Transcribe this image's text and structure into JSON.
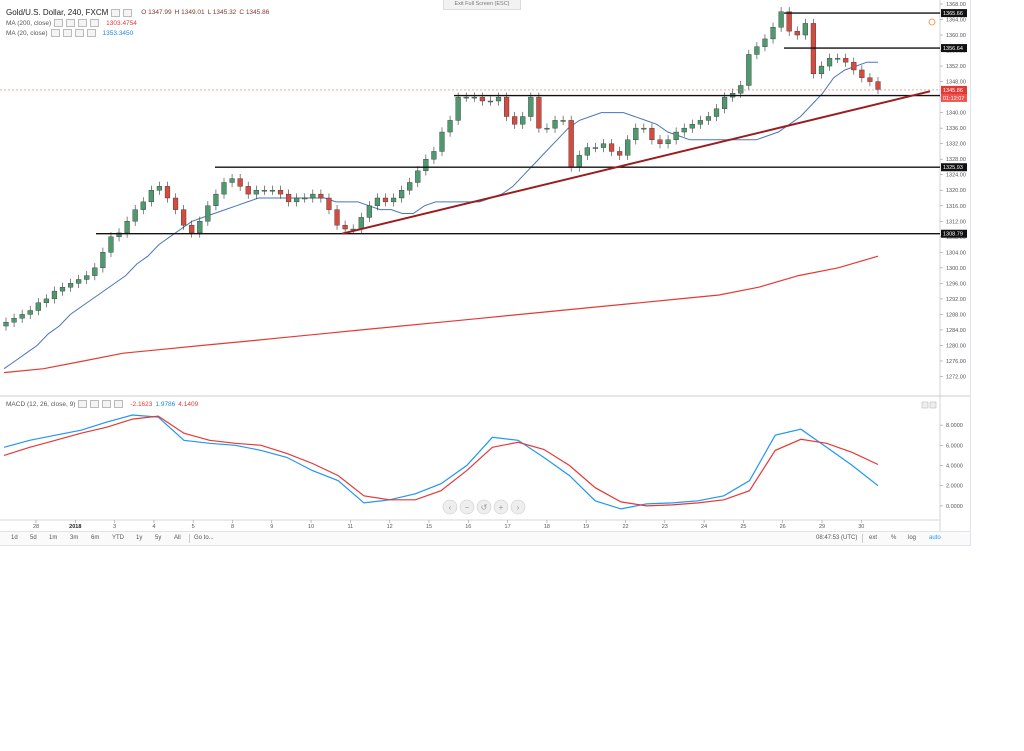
{
  "legend": {
    "symbol": "Gold/U.S. Dollar, 240, FXCM",
    "open": "O 1347.99",
    "high": "H 1349.01",
    "low": "L 1345.32",
    "close": "C 1345.86",
    "ma200_label": "MA (200, close)",
    "ma200_value": "1303.4754",
    "ma20_label": "MA (20, close)",
    "ma20_value": "1353.3450",
    "macd_label": "MACD (12, 26, close, 9)",
    "macd_v1": "-2.1623",
    "macd_v2": "1.9786",
    "macd_v3": "4.1409"
  },
  "exit_fullscreen": "Exit Full Screen (ESC)",
  "toolbar": {
    "ranges": [
      "1d",
      "5d",
      "1m",
      "3m",
      "6m",
      "YTD",
      "1y",
      "5y",
      "All"
    ],
    "goto": "Go to...",
    "clock": "08:47:53 (UTC)",
    "ext": "ext",
    "pct": "%",
    "log": "log",
    "auto": "auto"
  },
  "colors": {
    "up": "#4e9a6f",
    "down": "#d44b40",
    "ma20": "#4a76b8",
    "ma200": "#e53935",
    "trend": "#9b1c1c",
    "macd": "#2196f3",
    "signal": "#e53935"
  },
  "chart_data": [
    {
      "type": "candlestick",
      "title": "Gold/U.S. Dollar, 240, FXCM",
      "ylim": [
        1268,
        1368
      ],
      "y_ticks": [
        1272,
        1276,
        1280,
        1284,
        1288,
        1292,
        1296,
        1300,
        1304,
        1308,
        1312,
        1316,
        1320,
        1324,
        1328,
        1332,
        1336,
        1340,
        1344,
        1348,
        1352,
        1356,
        1360,
        1364,
        1368
      ],
      "x_tick_labels": [
        "28",
        "2018",
        "3",
        "4",
        "5",
        "8",
        "9",
        "10",
        "11",
        "12",
        "15",
        "16",
        "17",
        "18",
        "19",
        "22",
        "23",
        "24",
        "25",
        "26",
        "29",
        "30"
      ],
      "horizontal_levels": [
        1365.66,
        1356.64,
        1344.39,
        1325.93,
        1308.79
      ],
      "level_labels": [
        "1365.66",
        "1356.64",
        "1344.39",
        "1325.93",
        "1308.79"
      ],
      "last_price_label": "1345.86",
      "countdown_label": "01:12:07",
      "trendline": {
        "from": [
          "10",
          1308.8
        ],
        "to": [
          "30",
          1345.5
        ]
      },
      "series": [
        {
          "name": "MA (20, close)",
          "closes": [
            1274,
            1276,
            1278,
            1280,
            1283,
            1285,
            1288,
            1290,
            1292,
            1294,
            1296,
            1298,
            1301,
            1303,
            1306,
            1308,
            1310,
            1312,
            1313,
            1314,
            1315,
            1316,
            1317,
            1318,
            1318,
            1318,
            1318,
            1318,
            1318,
            1318,
            1317,
            1317,
            1317,
            1316,
            1315,
            1315,
            1314,
            1314,
            1316,
            1317,
            1317,
            1317,
            1317,
            1317,
            1318,
            1319,
            1321,
            1324,
            1327,
            1330,
            1333,
            1336,
            1338,
            1339,
            1340,
            1340,
            1340,
            1339,
            1338,
            1337,
            1335,
            1334,
            1333,
            1333,
            1333,
            1333,
            1333,
            1333,
            1333,
            1334,
            1335,
            1337,
            1339,
            1342,
            1345,
            1349,
            1351,
            1352,
            1353,
            1353
          ]
        },
        {
          "name": "MA (200, close)",
          "values": [
            1273,
            1274,
            1276,
            1278,
            1279,
            1280,
            1281,
            1282,
            1283,
            1284,
            1285,
            1286,
            1287,
            1288,
            1289,
            1290,
            1291,
            1292,
            1293,
            1295,
            1298,
            1300,
            1303
          ]
        },
        {
          "name": "OHLC",
          "closes": [
            1286,
            1287,
            1288,
            1289,
            1291,
            1292,
            1294,
            1295,
            1296,
            1297,
            1298,
            1300,
            1304,
            1308,
            1309,
            1312,
            1315,
            1317,
            1320,
            1321,
            1318,
            1315,
            1311,
            1309,
            1312,
            1316,
            1319,
            1322,
            1323,
            1321,
            1319,
            1320,
            1320,
            1320,
            1319,
            1317,
            1318,
            1318,
            1319,
            1318,
            1315,
            1311,
            1310,
            1310,
            1313,
            1316,
            1318,
            1317,
            1318,
            1320,
            1322,
            1325,
            1328,
            1330,
            1335,
            1338,
            1344,
            1344,
            1344,
            1343,
            1343,
            1344,
            1339,
            1337,
            1339,
            1344,
            1336,
            1336,
            1338,
            1338,
            1326,
            1329,
            1331,
            1331,
            1332,
            1330,
            1329,
            1333,
            1336,
            1336,
            1333,
            1332,
            1333,
            1335,
            1336,
            1337,
            1338,
            1339,
            1341,
            1344,
            1345,
            1347,
            1355,
            1357,
            1359,
            1362,
            1366,
            1361,
            1360,
            1363,
            1350,
            1352,
            1354,
            1354,
            1353,
            1351,
            1349,
            1348,
            1346
          ]
        }
      ]
    },
    {
      "type": "line",
      "title": "MACD (12, 26, close, 9)",
      "ylim": [
        -1.2,
        9.5
      ],
      "y_ticks": [
        0,
        2,
        4,
        6,
        8
      ],
      "y_tick_labels": [
        "0.0000",
        "2.0000",
        "4.0000",
        "6.0000",
        "8.0000"
      ],
      "series": [
        {
          "name": "MACD",
          "values": [
            5.8,
            6.5,
            7.0,
            7.5,
            8.3,
            9.0,
            8.8,
            6.5,
            6.2,
            6.0,
            5.5,
            4.8,
            3.5,
            2.5,
            0.3,
            0.6,
            1.2,
            2.2,
            4.0,
            6.8,
            6.5,
            4.8,
            3.0,
            0.5,
            -0.3,
            0.2,
            0.3,
            0.5,
            1.0,
            2.5,
            7.0,
            7.6,
            5.8,
            4.0,
            2.0
          ]
        },
        {
          "name": "Signal",
          "values": [
            5.0,
            5.8,
            6.5,
            7.2,
            7.8,
            8.6,
            8.9,
            7.2,
            6.5,
            6.2,
            6.0,
            5.2,
            4.2,
            3.0,
            1.0,
            0.6,
            0.6,
            1.5,
            3.5,
            5.8,
            6.3,
            5.6,
            4.0,
            1.8,
            0.4,
            0.0,
            0.1,
            0.3,
            0.6,
            1.5,
            5.5,
            6.6,
            6.2,
            5.3,
            4.1
          ]
        }
      ]
    }
  ]
}
